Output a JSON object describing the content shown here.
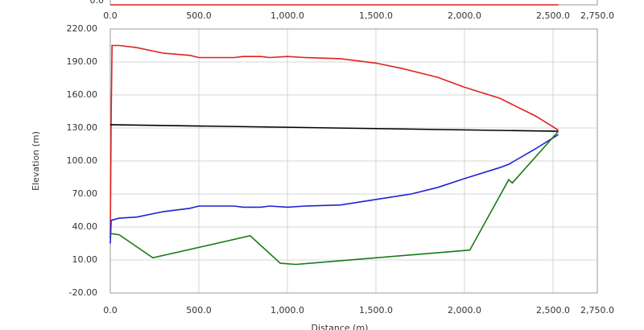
{
  "chart_data": [
    {
      "type": "line",
      "xlim": [
        0,
        2750
      ],
      "ylim": [
        0,
        10
      ],
      "xticks": [
        {
          "value": 0,
          "label": "0.0"
        },
        {
          "value": 500,
          "label": "500.0"
        },
        {
          "value": 1000,
          "label": "1,000.0"
        },
        {
          "value": 1500,
          "label": "1,500.0"
        },
        {
          "value": 2000,
          "label": "2,000.0"
        },
        {
          "value": 2500,
          "label": "2,500.0"
        },
        {
          "value": 2750,
          "label": "2,750.0"
        }
      ],
      "yticks": [
        {
          "value": 0,
          "label": "0.0"
        }
      ],
      "series": [
        {
          "color": "#e02020",
          "x": [
            0,
            2530
          ],
          "values": [
            0,
            0
          ]
        }
      ]
    },
    {
      "type": "line",
      "xlabel": "Distance (m)",
      "ylabel": "Elevation (m)",
      "grid": true,
      "xlim": [
        0,
        2750
      ],
      "ylim": [
        -20,
        220
      ],
      "xticks": [
        {
          "value": 0,
          "label": "0.0"
        },
        {
          "value": 500,
          "label": "500.0"
        },
        {
          "value": 1000,
          "label": "1,000.0"
        },
        {
          "value": 1500,
          "label": "1,500.0"
        },
        {
          "value": 2000,
          "label": "2,000.0"
        },
        {
          "value": 2500,
          "label": "2,500.0"
        },
        {
          "value": 2750,
          "label": "2,750.0"
        }
      ],
      "yticks": [
        {
          "value": -20,
          "label": "-20.00"
        },
        {
          "value": 10,
          "label": "10.00"
        },
        {
          "value": 40,
          "label": "40.00"
        },
        {
          "value": 70,
          "label": "70.00"
        },
        {
          "value": 100,
          "label": "100.00"
        },
        {
          "value": 130,
          "label": "130.00"
        },
        {
          "value": 160,
          "label": "160.00"
        },
        {
          "value": 190,
          "label": "190.00"
        },
        {
          "value": 220,
          "label": "220.00"
        }
      ],
      "series": [
        {
          "color": "#e02020",
          "x": [
            0,
            5,
            10,
            50,
            150,
            300,
            450,
            500,
            700,
            750,
            850,
            900,
            1000,
            1100,
            1300,
            1500,
            1650,
            1850,
            2000,
            2200,
            2250,
            2400,
            2500,
            2530
          ],
          "values": [
            30,
            140,
            205,
            205,
            203,
            198,
            196,
            194,
            194,
            195,
            195,
            194,
            195,
            194,
            193,
            189,
            184,
            176,
            167,
            157,
            153,
            141,
            131,
            128
          ]
        },
        {
          "color": "#000000",
          "x": [
            0,
            2530
          ],
          "values": [
            133,
            127
          ]
        },
        {
          "color": "#2020d0",
          "x": [
            0,
            5,
            50,
            150,
            300,
            450,
            500,
            700,
            750,
            850,
            900,
            1000,
            1100,
            1300,
            1500,
            1700,
            1850,
            2000,
            2200,
            2250,
            2400,
            2530
          ],
          "values": [
            25,
            46,
            48,
            49,
            54,
            57,
            59,
            59,
            58,
            58,
            59,
            58,
            59,
            60,
            65,
            70,
            76,
            84,
            94,
            97,
            111,
            124
          ]
        },
        {
          "color": "#1a7a1a",
          "x": [
            0,
            50,
            240,
            790,
            960,
            1050,
            2030,
            2250,
            2270,
            2530
          ],
          "values": [
            34,
            33,
            12,
            32,
            7,
            6,
            19,
            83,
            80,
            127
          ]
        }
      ]
    }
  ]
}
